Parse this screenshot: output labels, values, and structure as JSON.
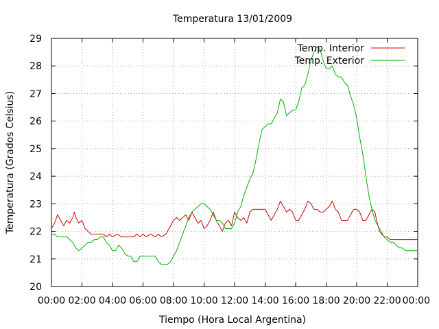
{
  "chart_data": {
    "type": "line",
    "title": "Temperatura 13/01/2009",
    "xlabel": "Tiempo (Hora Local Argentina)",
    "ylabel": "Temperatura (Grados Celsius)",
    "xlim": [
      0,
      24
    ],
    "ylim": [
      20,
      29
    ],
    "x_tick_labels": [
      "00:00",
      "02:00",
      "04:00",
      "06:00",
      "08:00",
      "10:00",
      "12:00",
      "14:00",
      "16:00",
      "18:00",
      "20:00",
      "22:00",
      "00:00"
    ],
    "y_tick_labels": [
      "20",
      "21",
      "22",
      "23",
      "24",
      "25",
      "26",
      "27",
      "28",
      "29"
    ],
    "grid": true,
    "legend_position": "top-right",
    "series": [
      {
        "name": "Temp. Interior",
        "color": "#cc0000",
        "points": [
          [
            0.0,
            22.1
          ],
          [
            0.2,
            22.3
          ],
          [
            0.4,
            22.6
          ],
          [
            0.5,
            22.5
          ],
          [
            0.6,
            22.4
          ],
          [
            0.8,
            22.2
          ],
          [
            1.0,
            22.4
          ],
          [
            1.2,
            22.3
          ],
          [
            1.4,
            22.5
          ],
          [
            1.5,
            22.7
          ],
          [
            1.6,
            22.5
          ],
          [
            1.8,
            22.3
          ],
          [
            2.0,
            22.4
          ],
          [
            2.2,
            22.1
          ],
          [
            2.4,
            22.0
          ],
          [
            2.6,
            21.9
          ],
          [
            3.0,
            21.9
          ],
          [
            3.4,
            21.9
          ],
          [
            3.6,
            21.8
          ],
          [
            3.8,
            21.9
          ],
          [
            4.0,
            21.8
          ],
          [
            4.3,
            21.9
          ],
          [
            4.6,
            21.8
          ],
          [
            5.0,
            21.8
          ],
          [
            5.4,
            21.8
          ],
          [
            5.6,
            21.9
          ],
          [
            5.8,
            21.8
          ],
          [
            6.0,
            21.9
          ],
          [
            6.2,
            21.8
          ],
          [
            6.5,
            21.9
          ],
          [
            6.8,
            21.8
          ],
          [
            7.0,
            21.9
          ],
          [
            7.2,
            21.8
          ],
          [
            7.5,
            21.9
          ],
          [
            7.8,
            22.2
          ],
          [
            8.0,
            22.4
          ],
          [
            8.2,
            22.5
          ],
          [
            8.4,
            22.4
          ],
          [
            8.6,
            22.5
          ],
          [
            8.8,
            22.6
          ],
          [
            9.0,
            22.4
          ],
          [
            9.2,
            22.7
          ],
          [
            9.4,
            22.5
          ],
          [
            9.6,
            22.3
          ],
          [
            9.8,
            22.4
          ],
          [
            10.0,
            22.1
          ],
          [
            10.2,
            22.2
          ],
          [
            10.4,
            22.4
          ],
          [
            10.6,
            22.7
          ],
          [
            10.8,
            22.4
          ],
          [
            11.0,
            22.2
          ],
          [
            11.2,
            22.0
          ],
          [
            11.4,
            22.3
          ],
          [
            11.6,
            22.4
          ],
          [
            11.8,
            22.2
          ],
          [
            12.0,
            22.7
          ],
          [
            12.2,
            22.5
          ],
          [
            12.4,
            22.4
          ],
          [
            12.6,
            22.5
          ],
          [
            12.8,
            22.3
          ],
          [
            13.0,
            22.7
          ],
          [
            13.2,
            22.8
          ],
          [
            13.6,
            22.8
          ],
          [
            14.0,
            22.8
          ],
          [
            14.2,
            22.6
          ],
          [
            14.4,
            22.4
          ],
          [
            14.6,
            22.6
          ],
          [
            14.8,
            22.8
          ],
          [
            15.0,
            23.1
          ],
          [
            15.2,
            22.9
          ],
          [
            15.4,
            22.7
          ],
          [
            15.6,
            22.8
          ],
          [
            15.8,
            22.7
          ],
          [
            16.0,
            22.4
          ],
          [
            16.2,
            22.4
          ],
          [
            16.4,
            22.6
          ],
          [
            16.6,
            22.8
          ],
          [
            16.8,
            23.1
          ],
          [
            17.0,
            23.0
          ],
          [
            17.2,
            22.8
          ],
          [
            17.4,
            22.8
          ],
          [
            17.6,
            22.7
          ],
          [
            17.8,
            22.7
          ],
          [
            18.0,
            22.8
          ],
          [
            18.2,
            22.9
          ],
          [
            18.4,
            23.1
          ],
          [
            18.6,
            22.8
          ],
          [
            18.8,
            22.7
          ],
          [
            19.0,
            22.4
          ],
          [
            19.2,
            22.4
          ],
          [
            19.4,
            22.4
          ],
          [
            19.6,
            22.6
          ],
          [
            19.8,
            22.8
          ],
          [
            20.0,
            22.8
          ],
          [
            20.2,
            22.7
          ],
          [
            20.4,
            22.4
          ],
          [
            20.6,
            22.4
          ],
          [
            20.8,
            22.6
          ],
          [
            21.0,
            22.8
          ],
          [
            21.2,
            22.7
          ],
          [
            21.3,
            22.4
          ],
          [
            21.5,
            22.0
          ],
          [
            21.8,
            21.8
          ],
          [
            22.0,
            21.8
          ],
          [
            22.2,
            21.7
          ],
          [
            22.6,
            21.7
          ],
          [
            23.0,
            21.7
          ],
          [
            23.5,
            21.7
          ],
          [
            24.0,
            21.7
          ]
        ]
      },
      {
        "name": "Temp. Exterior",
        "color": "#00b000",
        "points": [
          [
            0.0,
            21.9
          ],
          [
            0.2,
            21.9
          ],
          [
            0.4,
            21.8
          ],
          [
            0.8,
            21.8
          ],
          [
            1.0,
            21.8
          ],
          [
            1.2,
            21.7
          ],
          [
            1.4,
            21.6
          ],
          [
            1.6,
            21.4
          ],
          [
            1.8,
            21.3
          ],
          [
            2.0,
            21.4
          ],
          [
            2.2,
            21.5
          ],
          [
            2.4,
            21.6
          ],
          [
            2.6,
            21.6
          ],
          [
            2.8,
            21.7
          ],
          [
            3.0,
            21.7
          ],
          [
            3.2,
            21.8
          ],
          [
            3.4,
            21.8
          ],
          [
            3.6,
            21.6
          ],
          [
            3.8,
            21.5
          ],
          [
            4.0,
            21.3
          ],
          [
            4.2,
            21.3
          ],
          [
            4.4,
            21.5
          ],
          [
            4.6,
            21.4
          ],
          [
            4.8,
            21.2
          ],
          [
            5.0,
            21.1
          ],
          [
            5.2,
            21.1
          ],
          [
            5.4,
            20.9
          ],
          [
            5.6,
            20.9
          ],
          [
            5.8,
            21.1
          ],
          [
            6.0,
            21.1
          ],
          [
            6.4,
            21.1
          ],
          [
            6.8,
            21.1
          ],
          [
            7.0,
            20.9
          ],
          [
            7.2,
            20.8
          ],
          [
            7.4,
            20.8
          ],
          [
            7.6,
            20.8
          ],
          [
            7.8,
            20.9
          ],
          [
            8.0,
            21.1
          ],
          [
            8.2,
            21.3
          ],
          [
            8.4,
            21.6
          ],
          [
            8.6,
            21.9
          ],
          [
            8.8,
            22.2
          ],
          [
            9.0,
            22.5
          ],
          [
            9.2,
            22.7
          ],
          [
            9.4,
            22.8
          ],
          [
            9.6,
            22.9
          ],
          [
            9.8,
            23.0
          ],
          [
            10.0,
            23.0
          ],
          [
            10.2,
            22.9
          ],
          [
            10.4,
            22.8
          ],
          [
            10.6,
            22.6
          ],
          [
            10.8,
            22.4
          ],
          [
            11.0,
            22.4
          ],
          [
            11.2,
            22.3
          ],
          [
            11.4,
            22.1
          ],
          [
            11.6,
            22.1
          ],
          [
            11.8,
            22.1
          ],
          [
            12.0,
            22.3
          ],
          [
            12.2,
            22.7
          ],
          [
            12.4,
            22.9
          ],
          [
            12.6,
            23.3
          ],
          [
            12.8,
            23.6
          ],
          [
            13.0,
            23.9
          ],
          [
            13.2,
            24.1
          ],
          [
            13.4,
            24.6
          ],
          [
            13.6,
            25.2
          ],
          [
            13.8,
            25.7
          ],
          [
            14.0,
            25.8
          ],
          [
            14.2,
            25.9
          ],
          [
            14.4,
            25.9
          ],
          [
            14.6,
            26.1
          ],
          [
            14.8,
            26.3
          ],
          [
            15.0,
            26.8
          ],
          [
            15.2,
            26.7
          ],
          [
            15.4,
            26.2
          ],
          [
            15.6,
            26.3
          ],
          [
            15.8,
            26.4
          ],
          [
            16.0,
            26.4
          ],
          [
            16.2,
            26.7
          ],
          [
            16.4,
            27.2
          ],
          [
            16.6,
            27.3
          ],
          [
            16.8,
            27.7
          ],
          [
            17.0,
            28.2
          ],
          [
            17.2,
            28.5
          ],
          [
            17.4,
            28.7
          ],
          [
            17.6,
            28.6
          ],
          [
            17.8,
            28.2
          ],
          [
            18.0,
            27.9
          ],
          [
            18.2,
            27.9
          ],
          [
            18.4,
            28.0
          ],
          [
            18.6,
            27.7
          ],
          [
            18.8,
            27.6
          ],
          [
            19.0,
            27.6
          ],
          [
            19.2,
            27.4
          ],
          [
            19.4,
            27.3
          ],
          [
            19.6,
            26.9
          ],
          [
            19.8,
            26.6
          ],
          [
            20.0,
            26.1
          ],
          [
            20.2,
            25.4
          ],
          [
            20.4,
            24.8
          ],
          [
            20.6,
            24.0
          ],
          [
            20.8,
            23.3
          ],
          [
            21.0,
            22.8
          ],
          [
            21.2,
            22.4
          ],
          [
            21.4,
            22.2
          ],
          [
            21.6,
            22.0
          ],
          [
            21.8,
            21.8
          ],
          [
            22.0,
            21.7
          ],
          [
            22.2,
            21.6
          ],
          [
            22.4,
            21.6
          ],
          [
            22.6,
            21.5
          ],
          [
            22.8,
            21.4
          ],
          [
            23.0,
            21.4
          ],
          [
            23.2,
            21.3
          ],
          [
            23.5,
            21.3
          ],
          [
            24.0,
            21.3
          ]
        ]
      }
    ]
  }
}
